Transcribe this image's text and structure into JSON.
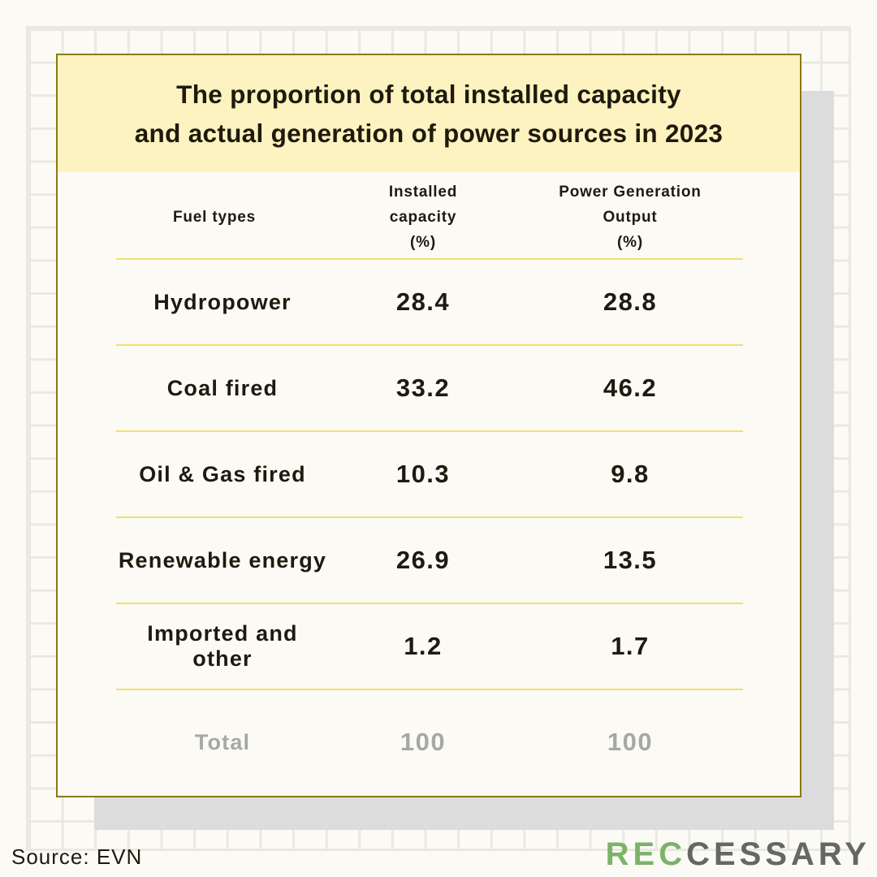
{
  "title_lines": [
    "The proportion of total installed capacity",
    "and actual generation of power sources in 2023"
  ],
  "table": {
    "headers": {
      "fuel": "Fuel types",
      "installed": [
        "Installed",
        "capacity",
        "(%)"
      ],
      "output": [
        "Power Generation",
        "Output",
        "(%)"
      ]
    }
  },
  "chart_data": {
    "type": "table",
    "title": "The proportion of total installed capacity and actual generation of power sources in 2023",
    "columns": [
      "Fuel types",
      "Installed capacity (%)",
      "Power Generation Output (%)"
    ],
    "rows": [
      {
        "fuel": "Hydropower",
        "installed": "28.4",
        "output": "28.8"
      },
      {
        "fuel": "Coal fired",
        "installed": "33.2",
        "output": "46.2"
      },
      {
        "fuel": "Oil & Gas fired",
        "installed": "10.3",
        "output": "9.8"
      },
      {
        "fuel": "Renewable energy",
        "installed": "26.9",
        "output": "13.5"
      },
      {
        "fuel": "Imported and other",
        "installed": "1.2",
        "output": "1.7"
      }
    ],
    "total": {
      "label": "Total",
      "installed": "100",
      "output": "100"
    }
  },
  "source": "Source: EVN",
  "logo": {
    "accent": "REC",
    "rest": "CESSARY"
  },
  "colors": {
    "header_band": "#fdf3c0",
    "card_border": "#8a7a12",
    "row_divider": "#f2df6c",
    "total_text": "#a7a7a7",
    "logo_accent": "#7bb369",
    "logo_text": "#666666"
  }
}
